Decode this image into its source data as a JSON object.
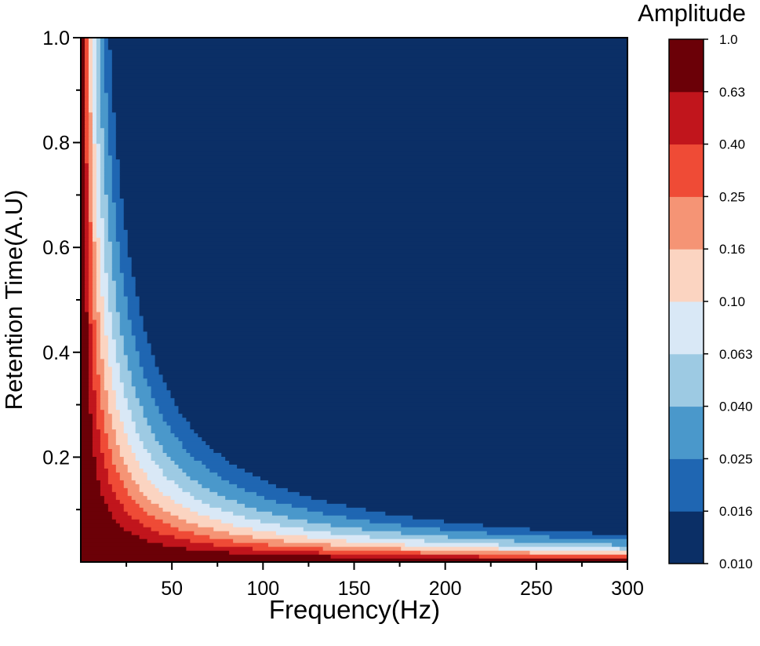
{
  "chart_data": {
    "type": "heatmap",
    "model": "amplitude = 1 / (1 + (frequency * retention_time / 2)^2)",
    "xlabel": "Frequency(Hz)",
    "ylabel": "Retention Time(A.U)",
    "xlim": [
      0,
      300
    ],
    "ylim": [
      0,
      1.0
    ],
    "xticks": [
      50,
      100,
      150,
      200,
      250,
      300
    ],
    "xtick_labels": [
      "50",
      "100",
      "150",
      "200",
      "250",
      "300"
    ],
    "yticks": [
      0.2,
      0.4,
      0.6,
      0.8,
      1.0
    ],
    "ytick_labels": [
      "0.2",
      "0.4",
      "0.6",
      "0.8",
      "1.0"
    ],
    "colorbar": {
      "title": "Amplitude",
      "scale": "log",
      "levels": [
        0.01,
        0.016,
        0.025,
        0.04,
        0.063,
        0.1,
        0.16,
        0.25,
        0.4,
        0.63,
        1.0
      ],
      "level_labels": [
        "0.010",
        "0.016",
        "0.025",
        "0.040",
        "0.063",
        "0.10",
        "0.16",
        "0.25",
        "0.40",
        "0.63",
        "1.0"
      ],
      "colors": [
        "#0b2f66",
        "#1f66b2",
        "#4a98cb",
        "#9dcae3",
        "#d9e8f6",
        "#fbd4c1",
        "#f59475",
        "#ef4b36",
        "#c1151c",
        "#6b0007"
      ]
    },
    "grid": false
  }
}
